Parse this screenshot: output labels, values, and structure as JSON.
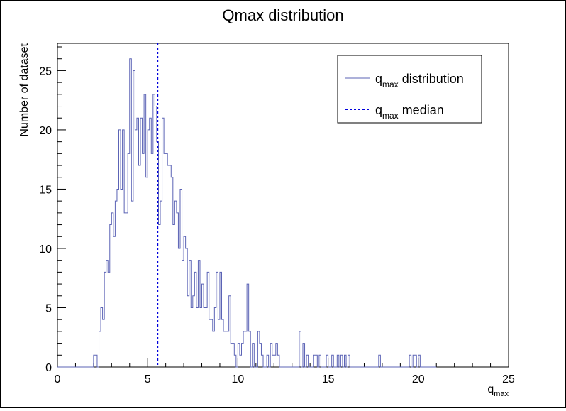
{
  "chart_data": {
    "type": "histogram",
    "title": "Qmax distribution",
    "xlabel": {
      "base": "q",
      "sub": "max"
    },
    "ylabel": "Number of dataset",
    "xlim": [
      0,
      25
    ],
    "ylim": [
      0,
      27.3
    ],
    "x_ticks": [
      0,
      5,
      10,
      15,
      20,
      25
    ],
    "x_tick_labels": [
      "0",
      "5",
      "10",
      "15",
      "20",
      "25"
    ],
    "y_ticks": [
      0,
      5,
      10,
      15,
      20,
      25
    ],
    "y_tick_labels": [
      "0",
      "5",
      "10",
      "15",
      "20",
      "25"
    ],
    "grid": false,
    "legend_position": "top-right",
    "bin_width": 0.1,
    "bin_start": 0,
    "series": [
      {
        "name": "q_max distribution",
        "color": "#5b63b5",
        "style": "step",
        "values": [
          0,
          0,
          0,
          0,
          0,
          0,
          0,
          0,
          0,
          0,
          0,
          0,
          0,
          0,
          0,
          0,
          0,
          0,
          0,
          0,
          1,
          1,
          0,
          3,
          5,
          4,
          8,
          9,
          8,
          12,
          13,
          11,
          14,
          15,
          20,
          15,
          20,
          13,
          13,
          18,
          26,
          14,
          25,
          20,
          21,
          17,
          21,
          18,
          23,
          16,
          20,
          21,
          18,
          23,
          22,
          19,
          12,
          14,
          21,
          18,
          18,
          17,
          17,
          16,
          12,
          14,
          13,
          10,
          15,
          9,
          11,
          10,
          6,
          9,
          5,
          6,
          8,
          5,
          9,
          5,
          7,
          5,
          5,
          8,
          4,
          4,
          3,
          5,
          8,
          4,
          8,
          4,
          3,
          3,
          3,
          6,
          2,
          2,
          1,
          0,
          2,
          1,
          2,
          3,
          3,
          7,
          3,
          0,
          2,
          0,
          0,
          3,
          2,
          1,
          0,
          0,
          1,
          0,
          2,
          1,
          1,
          2,
          1,
          0,
          0,
          0,
          0,
          0,
          0,
          0,
          0,
          0,
          0,
          0,
          3,
          0,
          2,
          0,
          1,
          0,
          0,
          0,
          1,
          1,
          0,
          1,
          0,
          0,
          0,
          1,
          0,
          0,
          1,
          0,
          0,
          1,
          0,
          1,
          0,
          1,
          0,
          1,
          0,
          0,
          0,
          0,
          0,
          0,
          0,
          0,
          0,
          0,
          0,
          0,
          0,
          0,
          0,
          0,
          1,
          0,
          0,
          0,
          0,
          0,
          0,
          0,
          0,
          0,
          0,
          0,
          0,
          0,
          0,
          0,
          0,
          1,
          0,
          1,
          1,
          0,
          1,
          0,
          0,
          0,
          0,
          0,
          0,
          0,
          0,
          0
        ]
      }
    ],
    "median": {
      "name": "q_max median",
      "x": 5.55,
      "color": "#0000dd",
      "style": "dotted"
    },
    "legend": [
      {
        "base": "q",
        "sub": "max",
        "text": " distribution",
        "style": "solid",
        "color": "#5b63b5"
      },
      {
        "base": "q",
        "sub": "max",
        "text": " median",
        "style": "dotted",
        "color": "#0000dd"
      }
    ]
  }
}
